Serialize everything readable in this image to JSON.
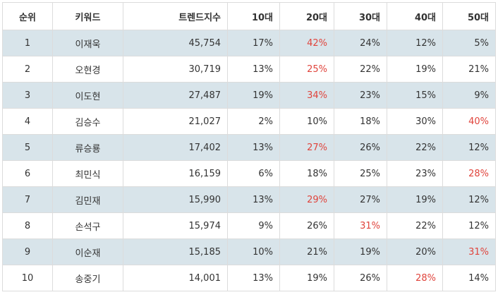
{
  "table": {
    "headers": {
      "rank": "순위",
      "keyword": "키워드",
      "trend": "트렌드지수",
      "age10": "10대",
      "age20": "20대",
      "age30": "30대",
      "age40": "40대",
      "age50": "50대"
    },
    "rows": [
      {
        "rank": "1",
        "keyword": "이재욱",
        "trend": "45,754",
        "age10": "17%",
        "age20": "42%",
        "age30": "24%",
        "age40": "12%",
        "age50": "5%",
        "highlight": "age20"
      },
      {
        "rank": "2",
        "keyword": "오현경",
        "trend": "30,719",
        "age10": "13%",
        "age20": "25%",
        "age30": "22%",
        "age40": "19%",
        "age50": "21%",
        "highlight": "age20"
      },
      {
        "rank": "3",
        "keyword": "이도현",
        "trend": "27,487",
        "age10": "19%",
        "age20": "34%",
        "age30": "23%",
        "age40": "15%",
        "age50": "9%",
        "highlight": "age20"
      },
      {
        "rank": "4",
        "keyword": "김승수",
        "trend": "21,027",
        "age10": "2%",
        "age20": "10%",
        "age30": "18%",
        "age40": "30%",
        "age50": "40%",
        "highlight": "age50"
      },
      {
        "rank": "5",
        "keyword": "류승룡",
        "trend": "17,402",
        "age10": "13%",
        "age20": "27%",
        "age30": "26%",
        "age40": "22%",
        "age50": "12%",
        "highlight": "age20"
      },
      {
        "rank": "6",
        "keyword": "최민식",
        "trend": "16,159",
        "age10": "6%",
        "age20": "18%",
        "age30": "25%",
        "age40": "23%",
        "age50": "28%",
        "highlight": "age50"
      },
      {
        "rank": "7",
        "keyword": "김민재",
        "trend": "15,990",
        "age10": "13%",
        "age20": "29%",
        "age30": "27%",
        "age40": "19%",
        "age50": "12%",
        "highlight": "age20"
      },
      {
        "rank": "8",
        "keyword": "손석구",
        "trend": "15,974",
        "age10": "9%",
        "age20": "26%",
        "age30": "31%",
        "age40": "22%",
        "age50": "12%",
        "highlight": "age30"
      },
      {
        "rank": "9",
        "keyword": "이순재",
        "trend": "15,185",
        "age10": "10%",
        "age20": "21%",
        "age30": "19%",
        "age40": "20%",
        "age50": "31%",
        "highlight": "age50"
      },
      {
        "rank": "10",
        "keyword": "송중기",
        "trend": "14,001",
        "age10": "13%",
        "age20": "19%",
        "age30": "26%",
        "age40": "28%",
        "age50": "14%",
        "highlight": "age40"
      }
    ],
    "highlight_color": "#e0443c",
    "shade_color": "#d8e4ea"
  }
}
